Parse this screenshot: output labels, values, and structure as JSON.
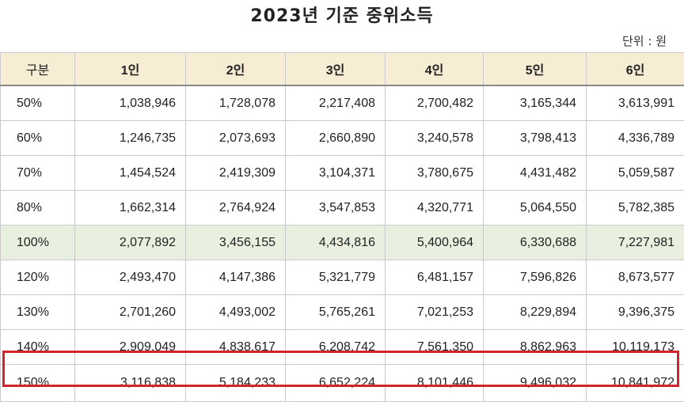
{
  "title": "2023년 기준 중위소득",
  "unit": "단위 : 원",
  "colors": {
    "header_bg": "#f7ecd4",
    "highlight_bg": "#e9f0df",
    "box_border": "#d2242a"
  },
  "table": {
    "headers": [
      "구분",
      "1인",
      "2인",
      "3인",
      "4인",
      "5인",
      "6인"
    ],
    "rows": [
      [
        "50%",
        "1,038,946",
        "1,728,078",
        "2,217,408",
        "2,700,482",
        "3,165,344",
        "3,613,991"
      ],
      [
        "60%",
        "1,246,735",
        "2,073,693",
        "2,660,890",
        "3,240,578",
        "3,798,413",
        "4,336,789"
      ],
      [
        "70%",
        "1,454,524",
        "2,419,309",
        "3,104,371",
        "3,780,675",
        "4,431,482",
        "5,059,587"
      ],
      [
        "80%",
        "1,662,314",
        "2,764,924",
        "3,547,853",
        "4,320,771",
        "5,064,550",
        "5,782,385"
      ],
      [
        "100%",
        "2,077,892",
        "3,456,155",
        "4,434,816",
        "5,400,964",
        "6,330,688",
        "7,227,981"
      ],
      [
        "120%",
        "2,493,470",
        "4,147,386",
        "5,321,779",
        "6,481,157",
        "7,596,826",
        "8,673,577"
      ],
      [
        "130%",
        "2,701,260",
        "4,493,002",
        "5,765,261",
        "7,021,253",
        "8,229,894",
        "9,396,375"
      ],
      [
        "140%",
        "2,909,049",
        "4,838,617",
        "6,208,742",
        "7,561,350",
        "8,862,963",
        "10,119,173"
      ],
      [
        "150%",
        "3,116,838",
        "5,184,233",
        "6,652,224",
        "8,101,446",
        "9,496,032",
        "10,841,972"
      ]
    ]
  }
}
